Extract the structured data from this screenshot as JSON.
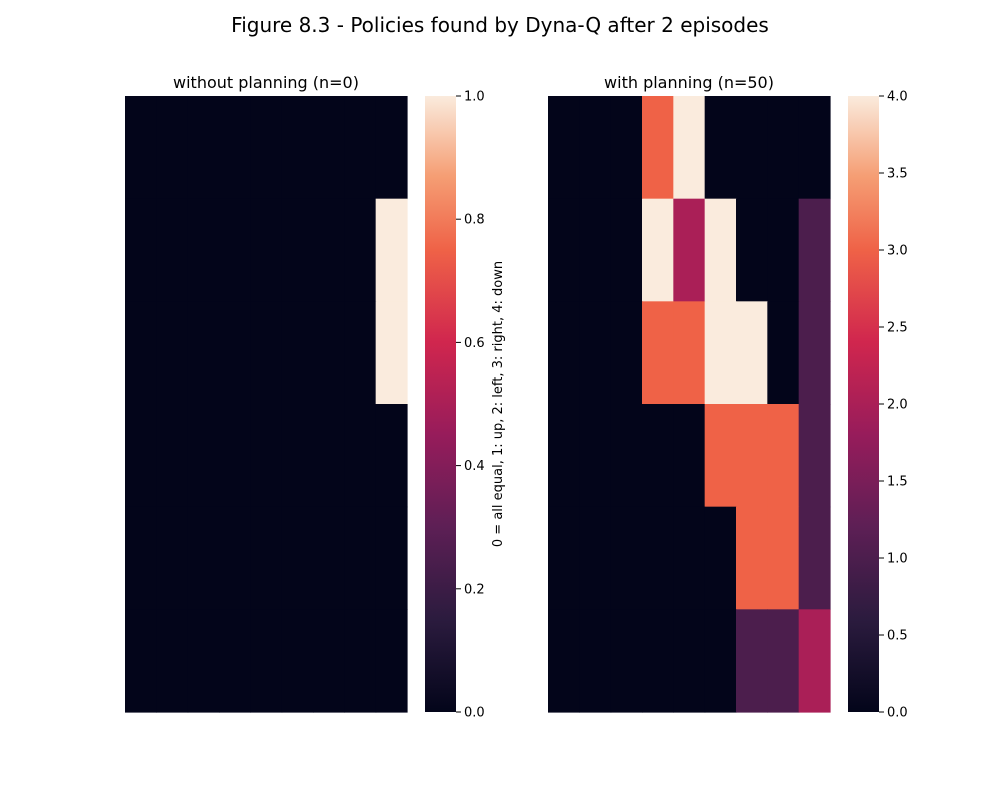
{
  "figure_title": "Figure 8.3 - Policies found by Dyna-Q after 2 episodes",
  "chart_data": [
    {
      "type": "heatmap",
      "title": "without planning (n=0)",
      "rows": 6,
      "cols": 9,
      "values": [
        [
          0,
          0,
          0,
          0,
          0,
          0,
          0,
          0,
          0
        ],
        [
          0,
          0,
          0,
          0,
          0,
          0,
          0,
          0,
          1
        ],
        [
          0,
          0,
          0,
          0,
          0,
          0,
          0,
          0,
          1
        ],
        [
          0,
          0,
          0,
          0,
          0,
          0,
          0,
          0,
          0
        ],
        [
          0,
          0,
          0,
          0,
          0,
          0,
          0,
          0,
          0
        ],
        [
          0,
          0,
          0,
          0,
          0,
          0,
          0,
          0,
          0
        ]
      ],
      "colorbar": {
        "vmin": 0,
        "vmax": 1,
        "ticks": [
          0,
          0.2,
          0.4,
          0.6,
          0.8,
          1.0
        ],
        "tick_labels": [
          "0.0",
          "0.2",
          "0.4",
          "0.6",
          "0.8",
          "1.0"
        ],
        "label": "0 = all equal, 1: up, 2: left, 3: right, 4: down"
      }
    },
    {
      "type": "heatmap",
      "title": "with planning (n=50)",
      "rows": 6,
      "cols": 9,
      "values": [
        [
          0,
          0,
          0,
          3,
          4,
          0,
          0,
          0,
          0
        ],
        [
          0,
          0,
          0,
          4,
          2,
          4,
          0,
          0,
          1
        ],
        [
          0,
          0,
          0,
          3,
          3,
          4,
          4,
          0,
          1
        ],
        [
          0,
          0,
          0,
          0,
          0,
          3,
          3,
          3,
          1
        ],
        [
          0,
          0,
          0,
          0,
          0,
          0,
          3,
          3,
          1
        ],
        [
          0,
          0,
          0,
          0,
          0,
          0,
          1,
          1,
          2
        ]
      ],
      "colorbar": {
        "vmin": 0,
        "vmax": 4,
        "ticks": [
          0,
          0.5,
          1,
          1.5,
          2,
          2.5,
          3,
          3.5,
          4
        ],
        "tick_labels": [
          "0.0",
          "0.5",
          "1.0",
          "1.5",
          "2.0",
          "2.5",
          "3.0",
          "3.5",
          "4.0"
        ],
        "label": ""
      }
    }
  ]
}
